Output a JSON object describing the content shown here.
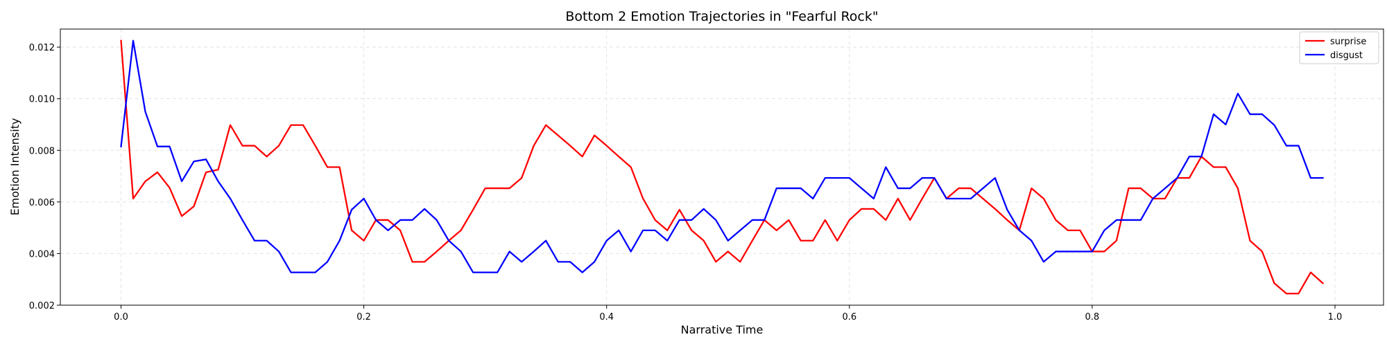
{
  "chart_data": {
    "type": "line",
    "title": "Bottom 2 Emotion Trajectories in \"Fearful Rock\"",
    "xlabel": "Narrative Time",
    "ylabel": "Emotion Intensity",
    "xlim": [
      -0.05,
      1.04
    ],
    "ylim": [
      0.002,
      0.0127
    ],
    "xticks": [
      0.0,
      0.2,
      0.4,
      0.6,
      0.8,
      1.0
    ],
    "xtick_labels": [
      "0.0",
      "0.2",
      "0.4",
      "0.6",
      "0.8",
      "1.0"
    ],
    "yticks": [
      0.002,
      0.004,
      0.006,
      0.008,
      0.01,
      0.012
    ],
    "ytick_labels": [
      "0.002",
      "0.004",
      "0.006",
      "0.008",
      "0.010",
      "0.012"
    ],
    "grid": true,
    "legend_position": "top-right",
    "x": [
      0.0,
      0.01,
      0.02,
      0.03,
      0.04,
      0.05,
      0.06,
      0.07,
      0.08,
      0.09,
      0.1,
      0.11,
      0.12,
      0.13,
      0.14,
      0.15,
      0.16,
      0.17,
      0.18,
      0.19,
      0.2,
      0.21,
      0.22,
      0.23,
      0.24,
      0.25,
      0.26,
      0.27,
      0.28,
      0.29,
      0.3,
      0.31,
      0.32,
      0.33,
      0.34,
      0.35,
      0.36,
      0.37,
      0.38,
      0.39,
      0.4,
      0.41,
      0.42,
      0.43,
      0.44,
      0.45,
      0.46,
      0.47,
      0.48,
      0.49,
      0.5,
      0.51,
      0.52,
      0.53,
      0.54,
      0.55,
      0.56,
      0.57,
      0.58,
      0.59,
      0.6,
      0.61,
      0.62,
      0.63,
      0.64,
      0.65,
      0.66,
      0.67,
      0.68,
      0.69,
      0.7,
      0.71,
      0.72,
      0.73,
      0.74,
      0.75,
      0.76,
      0.77,
      0.78,
      0.79,
      0.8,
      0.81,
      0.82,
      0.83,
      0.84,
      0.85,
      0.86,
      0.87,
      0.88,
      0.89,
      0.9,
      0.91,
      0.92,
      0.93,
      0.94,
      0.95,
      0.96,
      0.97,
      0.98,
      0.99
    ],
    "series": [
      {
        "name": "surprise",
        "color": "#ff0000",
        "values": [
          0.01225,
          0.00613,
          0.0068,
          0.00715,
          0.00655,
          0.00545,
          0.00583,
          0.00715,
          0.00725,
          0.00898,
          0.00818,
          0.00818,
          0.00776,
          0.00818,
          0.00898,
          0.00898,
          0.00818,
          0.00735,
          0.00735,
          0.0049,
          0.0045,
          0.0053,
          0.0053,
          0.0049,
          0.00368,
          0.00368,
          0.00408,
          0.0045,
          0.0049,
          0.0057,
          0.00653,
          0.00653,
          0.00653,
          0.00693,
          0.00818,
          0.00898,
          0.00858,
          0.00818,
          0.00776,
          0.00858,
          0.00818,
          0.00776,
          0.00735,
          0.00613,
          0.0053,
          0.0049,
          0.0057,
          0.0049,
          0.0045,
          0.00368,
          0.00408,
          0.00368,
          0.0045,
          0.0053,
          0.0049,
          0.0053,
          0.0045,
          0.0045,
          0.0053,
          0.0045,
          0.0053,
          0.00573,
          0.00573,
          0.0053,
          0.00613,
          0.0053,
          0.00613,
          0.00693,
          0.00613,
          0.00653,
          0.00653,
          0.00613,
          0.00573,
          0.0053,
          0.0049,
          0.00653,
          0.00613,
          0.0053,
          0.0049,
          0.0049,
          0.00408,
          0.00408,
          0.0045,
          0.00653,
          0.00653,
          0.00613,
          0.00613,
          0.00693,
          0.00693,
          0.00776,
          0.00735,
          0.00735,
          0.00653,
          0.0045,
          0.00408,
          0.00285,
          0.00245,
          0.00245,
          0.00327,
          0.00285
        ]
      },
      {
        "name": "disgust",
        "color": "#0000ff",
        "values": [
          0.00815,
          0.01225,
          0.0095,
          0.00815,
          0.00815,
          0.0068,
          0.00757,
          0.00765,
          0.0068,
          0.00613,
          0.0053,
          0.0045,
          0.0045,
          0.00408,
          0.00327,
          0.00327,
          0.00327,
          0.00368,
          0.0045,
          0.0057,
          0.00613,
          0.0053,
          0.0049,
          0.0053,
          0.0053,
          0.00573,
          0.0053,
          0.0045,
          0.00408,
          0.00327,
          0.00327,
          0.00327,
          0.00408,
          0.00368,
          0.00408,
          0.0045,
          0.00368,
          0.00368,
          0.00327,
          0.00368,
          0.0045,
          0.0049,
          0.00408,
          0.0049,
          0.0049,
          0.0045,
          0.0053,
          0.0053,
          0.00573,
          0.0053,
          0.0045,
          0.0049,
          0.0053,
          0.0053,
          0.00653,
          0.00653,
          0.00653,
          0.00613,
          0.00693,
          0.00693,
          0.00693,
          0.00653,
          0.00613,
          0.00735,
          0.00653,
          0.00653,
          0.00693,
          0.00693,
          0.00613,
          0.00613,
          0.00613,
          0.00653,
          0.00693,
          0.0057,
          0.0049,
          0.0045,
          0.00368,
          0.00408,
          0.00408,
          0.00408,
          0.00408,
          0.0049,
          0.0053,
          0.0053,
          0.0053,
          0.00613,
          0.00653,
          0.00693,
          0.00776,
          0.00776,
          0.0094,
          0.009,
          0.0102,
          0.0094,
          0.0094,
          0.00898,
          0.00818,
          0.00818,
          0.00693,
          0.00693
        ]
      }
    ]
  }
}
